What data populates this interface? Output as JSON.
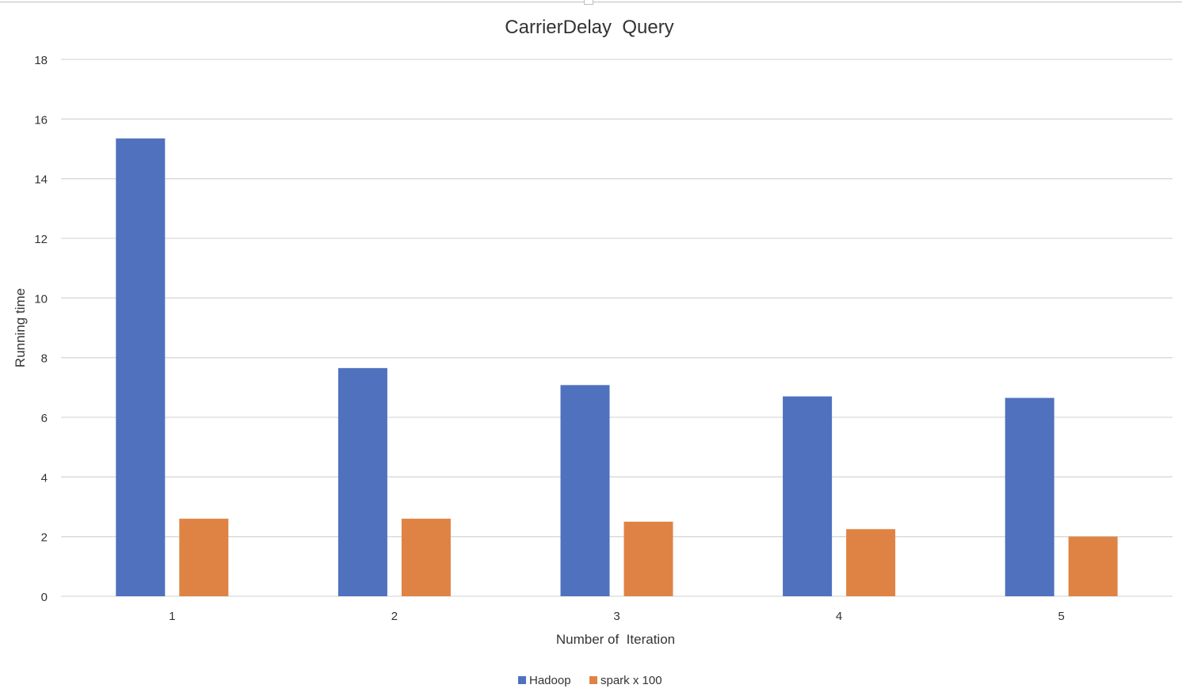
{
  "chart_data": {
    "type": "bar",
    "title": "CarrierDelay  Query",
    "xlabel": "Number of  Iteration",
    "ylabel": "Running time",
    "categories": [
      "1",
      "2",
      "3",
      "4",
      "5"
    ],
    "ylim": [
      0,
      18
    ],
    "yticks": [
      0,
      2,
      4,
      6,
      8,
      10,
      12,
      14,
      16,
      18
    ],
    "grid": true,
    "legend_position": "bottom",
    "series": [
      {
        "name": "Hadoop",
        "color": "#4f71be",
        "values": [
          15.35,
          7.65,
          7.08,
          6.7,
          6.65
        ]
      },
      {
        "name": "spark x 100",
        "color": "#df8344",
        "values": [
          2.6,
          2.6,
          2.5,
          2.25,
          2.0
        ]
      }
    ]
  }
}
